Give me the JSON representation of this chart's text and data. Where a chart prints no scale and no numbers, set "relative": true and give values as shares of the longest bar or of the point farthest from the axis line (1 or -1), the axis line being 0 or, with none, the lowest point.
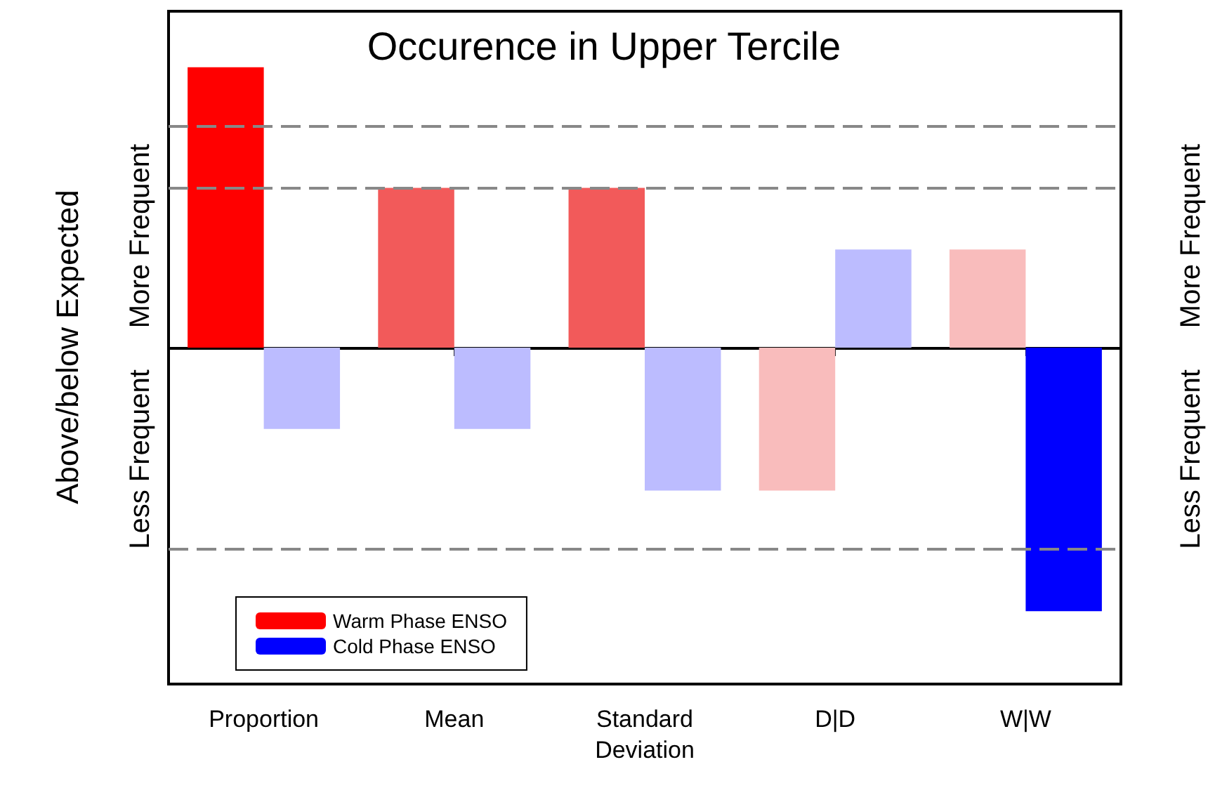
{
  "chart_data": {
    "type": "bar",
    "title": "Occurence in Upper Tercile",
    "ylabel": "Above/below Expected",
    "annotations": [
      "More Frequent",
      "Less Frequent",
      "More Frequent",
      "Less Frequent"
    ],
    "categories": [
      "Proportion",
      "Mean",
      "Standard Deviation",
      "D|D",
      "W|W"
    ],
    "relative": true,
    "legend": "bottom left",
    "series": [
      {
        "name": "Warm Phase ENSO",
        "color": "#ff0000",
        "values": [
          1,
          0.57,
          0.57,
          -0.51,
          0.35
        ],
        "colors": [
          "#ff0000",
          "#f25a5a",
          "#f25a5a",
          "#f9bcbc",
          "#f9bcbc"
        ]
      },
      {
        "name": "Cold Phase ENSO",
        "color": "#0000ff",
        "values": [
          -0.29,
          -0.29,
          -0.51,
          0.35,
          -0.94
        ],
        "colors": [
          "#bcbcff",
          "#bcbcff",
          "#bcbcff",
          "#bcbcff",
          "#0000ff"
        ]
      }
    ],
    "ref_lines": [
      {
        "axis": "y",
        "value": 0.79,
        "color": "#888888",
        "line_style": "dashed"
      },
      {
        "axis": "y",
        "value": 0.57,
        "color": "#888888",
        "line_style": "dashed"
      },
      {
        "axis": "y",
        "value": -0.72,
        "color": "#888888",
        "line_style": "dashed"
      }
    ]
  }
}
